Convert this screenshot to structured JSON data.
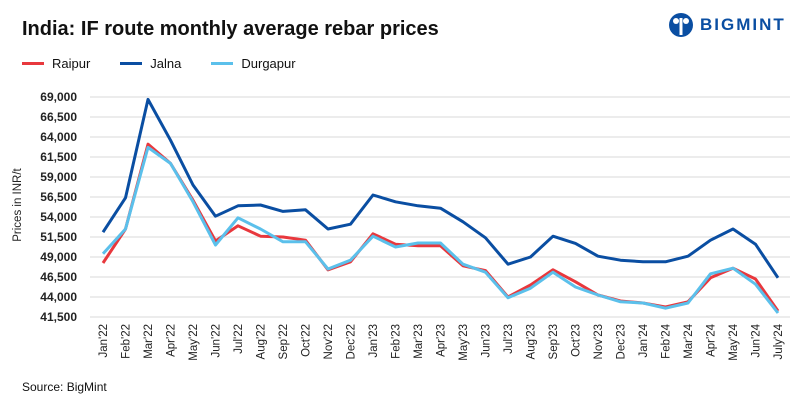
{
  "brand": {
    "name": "BIGMINT",
    "color": "#0a4ea2"
  },
  "chart_data": {
    "type": "line",
    "title": "India: IF route monthly average rebar prices",
    "ylabel": "Prices in INR/t",
    "xlabel": "",
    "ylim": [
      41500,
      69000
    ],
    "yticks": [
      69000,
      66500,
      64000,
      61500,
      59000,
      56500,
      54000,
      51500,
      49000,
      46500,
      44000,
      41500
    ],
    "ytick_labels": [
      "69,000",
      "66,500",
      "64,000",
      "61,500",
      "59,000",
      "56,500",
      "54,000",
      "51,500",
      "49,000",
      "46,500",
      "44,000",
      "41,500"
    ],
    "grid": true,
    "legend_placement": "top-left",
    "categories": [
      "Jan'22",
      "Feb'22",
      "Mar'22",
      "Apr'22",
      "May'22",
      "Jun'22",
      "Jul'22",
      "Aug'22",
      "Sep'22",
      "Oct'22",
      "Nov'22",
      "Dec'22",
      "Jan'23",
      "Feb'23",
      "Mar'23",
      "Apr'23",
      "May'23",
      "Jun'23",
      "Jul'23",
      "Aug'23",
      "Sep'23",
      "Oct'23",
      "Nov'23",
      "Dec'23",
      "Jan'24",
      "Feb'24",
      "Mar'24",
      "Apr'24",
      "May'24",
      "Jun'24",
      "July'24"
    ],
    "series": [
      {
        "name": "Raipur",
        "color": "#e8383d",
        "values": [
          48250,
          52500,
          63100,
          60700,
          56100,
          51000,
          52900,
          51600,
          51500,
          51100,
          47400,
          48400,
          51900,
          50600,
          50400,
          50400,
          47900,
          47300,
          44000,
          45500,
          47400,
          45900,
          44250,
          43500,
          43250,
          42750,
          43400,
          46400,
          47600,
          46250,
          42250
        ]
      },
      {
        "name": "Jalna",
        "color": "#0a4ea2",
        "values": [
          52100,
          56400,
          68700,
          63600,
          58000,
          54100,
          55400,
          55500,
          54700,
          54900,
          52500,
          53100,
          56750,
          55900,
          55400,
          55100,
          53400,
          51400,
          48100,
          49000,
          51600,
          50700,
          49100,
          48600,
          48400,
          48400,
          49100,
          51100,
          52500,
          50600,
          46400
        ]
      },
      {
        "name": "Durgapur",
        "color": "#5bc0eb",
        "values": [
          49400,
          52500,
          62700,
          60700,
          55900,
          50500,
          53900,
          52500,
          50900,
          50900,
          47500,
          48600,
          51600,
          50250,
          50750,
          50750,
          48100,
          47100,
          43900,
          45100,
          47100,
          45250,
          44250,
          43400,
          43250,
          42600,
          43250,
          46900,
          47600,
          45600,
          42000
        ]
      }
    ]
  },
  "source": "Source: BigMint"
}
